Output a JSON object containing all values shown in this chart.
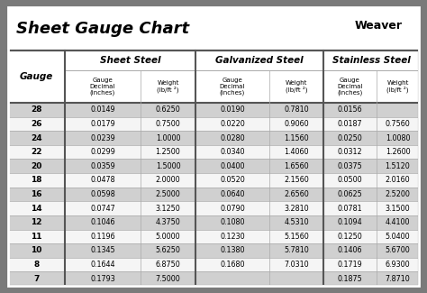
{
  "title": "Sheet Gauge Chart",
  "bg_outer": "#7a7a7a",
  "bg_inner": "#efefef",
  "bg_white": "#ffffff",
  "row_dark": "#d0d0d0",
  "row_light": "#f5f5f5",
  "border_dark": "#555555",
  "border_light": "#aaaaaa",
  "gauges": [
    28,
    26,
    24,
    22,
    20,
    18,
    16,
    14,
    12,
    11,
    10,
    8,
    7
  ],
  "sheet_steel_dec": [
    "0.0149",
    "0.0179",
    "0.0239",
    "0.0299",
    "0.0359",
    "0.0478",
    "0.0598",
    "0.0747",
    "0.1046",
    "0.1196",
    "0.1345",
    "0.1644",
    "0.1793"
  ],
  "sheet_steel_wt": [
    "0.6250",
    "0.7500",
    "1.0000",
    "1.2500",
    "1.5000",
    "2.0000",
    "2.5000",
    "3.1250",
    "4.3750",
    "5.0000",
    "5.6250",
    "6.8750",
    "7.5000"
  ],
  "galv_dec": [
    "0.0190",
    "0.0220",
    "0.0280",
    "0.0340",
    "0.0400",
    "0.0520",
    "0.0640",
    "0.0790",
    "0.1080",
    "0.1230",
    "0.1380",
    "0.1680",
    ""
  ],
  "galv_wt": [
    "0.7810",
    "0.9060",
    "1.1560",
    "1.4060",
    "1.6560",
    "2.1560",
    "2.6560",
    "3.2810",
    "4.5310",
    "5.1560",
    "5.7810",
    "7.0310",
    ""
  ],
  "stain_dec": [
    "0.0156",
    "0.0187",
    "0.0250",
    "0.0312",
    "0.0375",
    "0.0500",
    "0.0625",
    "0.0781",
    "0.1094",
    "0.1250",
    "0.1406",
    "0.1719",
    "0.1875"
  ],
  "stain_wt": [
    "",
    "0.7560",
    "1.0080",
    "1.2600",
    "1.5120",
    "2.0160",
    "2.5200",
    "3.1500",
    "4.4100",
    "5.0400",
    "5.6700",
    "6.9300",
    "7.8710"
  ]
}
